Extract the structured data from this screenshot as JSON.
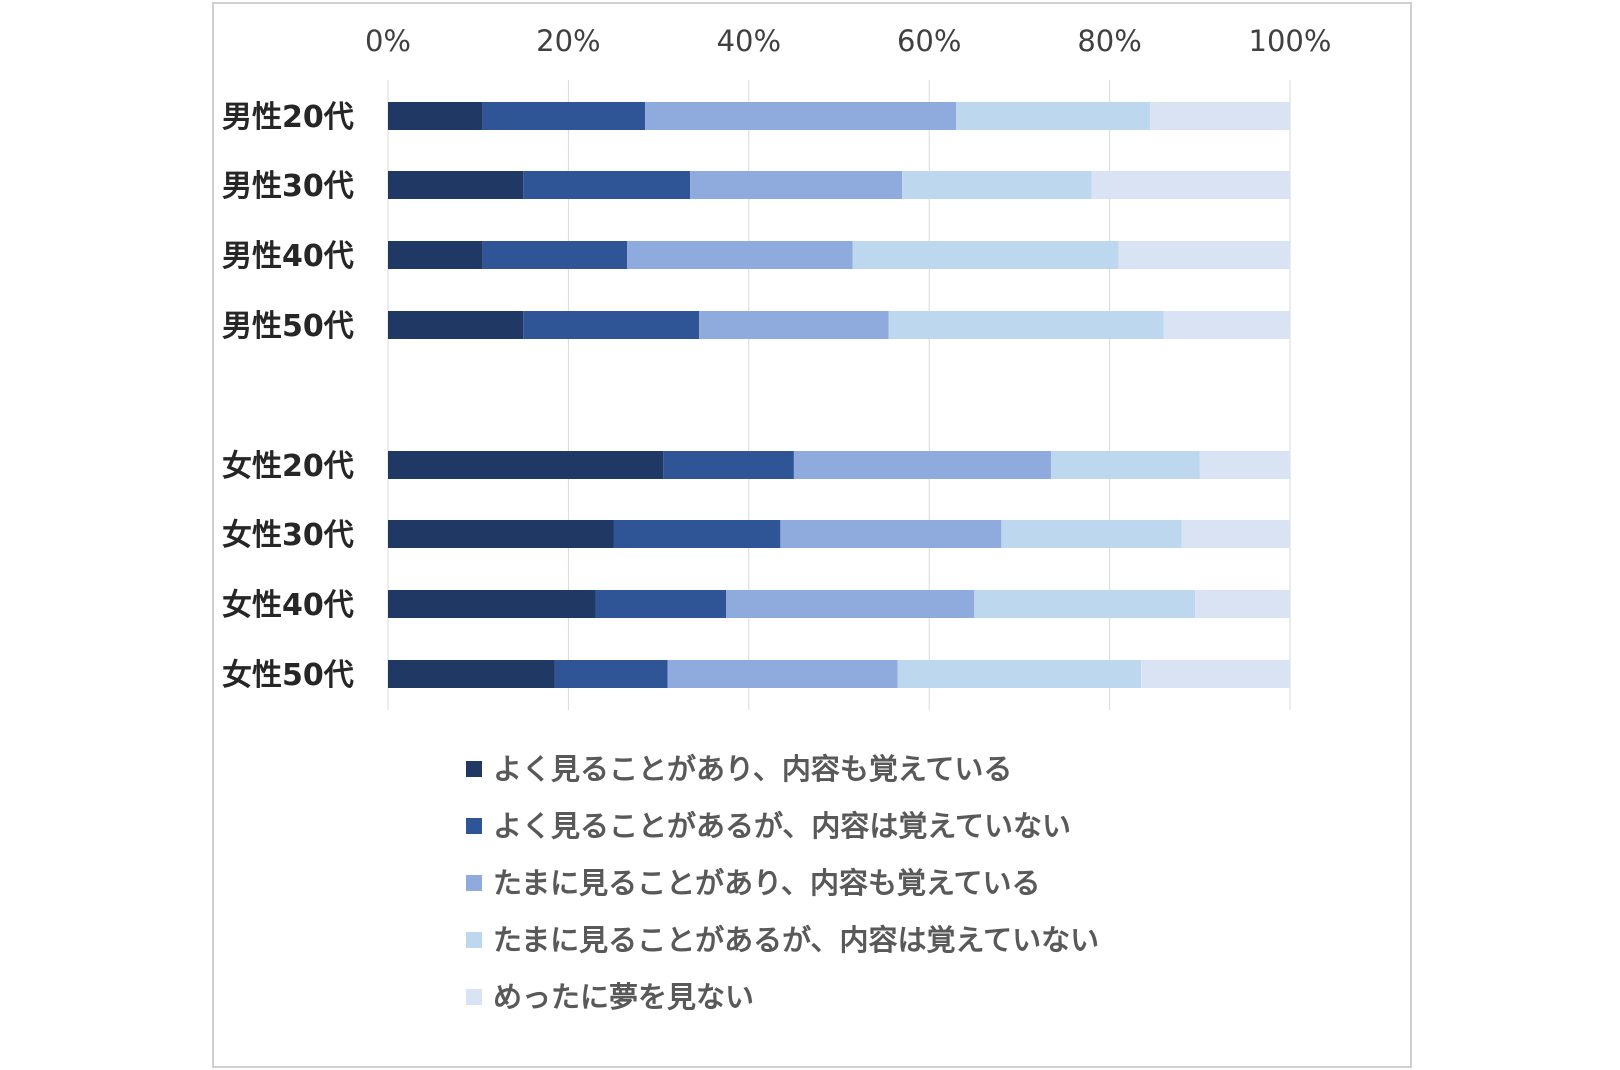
{
  "chart_data": {
    "type": "bar",
    "orientation": "horizontal",
    "stacked": "percent",
    "xlim": [
      0,
      100
    ],
    "x_ticks": [
      "0%",
      "20%",
      "40%",
      "60%",
      "80%",
      "100%"
    ],
    "grid": true,
    "legend_position": "bottom",
    "categories": [
      "男性20代",
      "男性30代",
      "男性40代",
      "男性50代",
      "女性20代",
      "女性30代",
      "女性40代",
      "女性50代"
    ],
    "series": [
      {
        "name": "よく見ることがあり、内容も覚えている",
        "color": "#1f3864",
        "values": [
          10.5,
          15.0,
          10.5,
          15.0,
          30.5,
          25.0,
          23.0,
          18.5
        ]
      },
      {
        "name": "よく見ることがあるが、内容は覚えていない",
        "color": "#2f5597",
        "values": [
          18.0,
          18.5,
          16.0,
          19.5,
          14.5,
          18.5,
          14.5,
          12.5
        ]
      },
      {
        "name": "たまに見ることがあり、内容も覚えている",
        "color": "#8faadc",
        "values": [
          34.5,
          23.5,
          25.0,
          21.0,
          28.5,
          24.5,
          27.5,
          25.5
        ]
      },
      {
        "name": "たまに見ることがあるが、内容は覚えていない",
        "color": "#bdd7ee",
        "values": [
          21.5,
          21.0,
          29.5,
          30.5,
          16.5,
          20.0,
          24.5,
          27.0
        ]
      },
      {
        "name": "めったに夢を見ない",
        "color": "#dae3f3",
        "values": [
          15.5,
          22.0,
          19.0,
          14.0,
          10.0,
          12.0,
          10.5,
          16.5
        ]
      }
    ]
  }
}
